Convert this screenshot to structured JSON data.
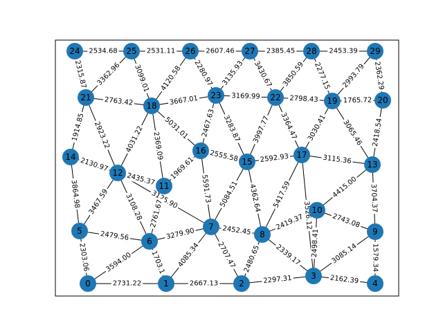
{
  "graph": {
    "nodes": [
      {
        "id": "0"
      },
      {
        "id": "1"
      },
      {
        "id": "2"
      },
      {
        "id": "3"
      },
      {
        "id": "4"
      },
      {
        "id": "5"
      },
      {
        "id": "6"
      },
      {
        "id": "7"
      },
      {
        "id": "8"
      },
      {
        "id": "9"
      },
      {
        "id": "10"
      },
      {
        "id": "11"
      },
      {
        "id": "12"
      },
      {
        "id": "13"
      },
      {
        "id": "14"
      },
      {
        "id": "15"
      },
      {
        "id": "16"
      },
      {
        "id": "17"
      },
      {
        "id": "18"
      },
      {
        "id": "19"
      },
      {
        "id": "20"
      },
      {
        "id": "21"
      },
      {
        "id": "22"
      },
      {
        "id": "23"
      },
      {
        "id": "24"
      },
      {
        "id": "25"
      },
      {
        "id": "26"
      },
      {
        "id": "27"
      },
      {
        "id": "28"
      },
      {
        "id": "29"
      }
    ],
    "edges": [
      {
        "source": "24",
        "target": "25",
        "label": "2534.68"
      },
      {
        "source": "25",
        "target": "26",
        "label": "2531.11"
      },
      {
        "source": "26",
        "target": "27",
        "label": "2607.46"
      },
      {
        "source": "27",
        "target": "28",
        "label": "2385.45"
      },
      {
        "source": "28",
        "target": "29",
        "label": "2453.39"
      },
      {
        "source": "24",
        "target": "21",
        "label": "2315.87"
      },
      {
        "source": "25",
        "target": "21",
        "label": "3362.96"
      },
      {
        "source": "25",
        "target": "18",
        "label": "3099.01"
      },
      {
        "source": "26",
        "target": "18",
        "label": "4120.58"
      },
      {
        "source": "26",
        "target": "23",
        "label": "2280.97"
      },
      {
        "source": "27",
        "target": "23",
        "label": "3135.93"
      },
      {
        "source": "27",
        "target": "22",
        "label": "3430.67"
      },
      {
        "source": "28",
        "target": "22",
        "label": "3850.59"
      },
      {
        "source": "28",
        "target": "19",
        "label": "2277.15"
      },
      {
        "source": "29",
        "target": "19",
        "label": "2993.79"
      },
      {
        "source": "29",
        "target": "20",
        "label": "2362.29"
      },
      {
        "source": "21",
        "target": "18",
        "label": "2763.42"
      },
      {
        "source": "18",
        "target": "23",
        "label": "3667.01"
      },
      {
        "source": "23",
        "target": "22",
        "label": "3169.99"
      },
      {
        "source": "22",
        "target": "19",
        "label": "2798.43"
      },
      {
        "source": "19",
        "target": "20",
        "label": "1765.72"
      },
      {
        "source": "21",
        "target": "14",
        "label": "1914.85"
      },
      {
        "source": "21",
        "target": "12",
        "label": "2923.22"
      },
      {
        "source": "18",
        "target": "12",
        "label": "4031.22"
      },
      {
        "source": "18",
        "target": "11",
        "label": "2369.09"
      },
      {
        "source": "18",
        "target": "16",
        "label": "5031.01"
      },
      {
        "source": "23",
        "target": "16",
        "label": "2467.63"
      },
      {
        "source": "23",
        "target": "15",
        "label": "3283.87"
      },
      {
        "source": "22",
        "target": "15",
        "label": "3997.77"
      },
      {
        "source": "22",
        "target": "17",
        "label": "3364.47"
      },
      {
        "source": "19",
        "target": "17",
        "label": "3030.41"
      },
      {
        "source": "19",
        "target": "13",
        "label": "3065.46"
      },
      {
        "source": "20",
        "target": "13",
        "label": "2418.54"
      },
      {
        "source": "14",
        "target": "12",
        "label": "2130.97"
      },
      {
        "source": "12",
        "target": "11",
        "label": "2435.37"
      },
      {
        "source": "11",
        "target": "16",
        "label": "1969.61"
      },
      {
        "source": "16",
        "target": "15",
        "label": "2555.58"
      },
      {
        "source": "15",
        "target": "17",
        "label": "2592.93"
      },
      {
        "source": "17",
        "target": "13",
        "label": "3115.36"
      },
      {
        "source": "14",
        "target": "5",
        "label": "3864.98"
      },
      {
        "source": "12",
        "target": "5",
        "label": "3467.59"
      },
      {
        "source": "12",
        "target": "6",
        "label": "3108.28"
      },
      {
        "source": "12",
        "target": "7",
        "label": "3125.90"
      },
      {
        "source": "11",
        "target": "6",
        "label": "2761.67"
      },
      {
        "source": "16",
        "target": "7",
        "label": "5591.73"
      },
      {
        "source": "15",
        "target": "7",
        "label": "5084.51"
      },
      {
        "source": "15",
        "target": "8",
        "label": "4362.64"
      },
      {
        "source": "17",
        "target": "8",
        "label": "5417.59"
      },
      {
        "source": "17",
        "target": "3",
        "label": "3526.12"
      },
      {
        "source": "13",
        "target": "10",
        "label": "4415.00"
      },
      {
        "source": "13",
        "target": "9",
        "label": "3704.37"
      },
      {
        "source": "5",
        "target": "6",
        "label": "2479.56"
      },
      {
        "source": "6",
        "target": "7",
        "label": "3279.90"
      },
      {
        "source": "7",
        "target": "8",
        "label": "2452.45"
      },
      {
        "source": "8",
        "target": "10",
        "label": "2419.37"
      },
      {
        "source": "10",
        "target": "9",
        "label": "2743.08"
      },
      {
        "source": "5",
        "target": "0",
        "label": "2303.06"
      },
      {
        "source": "6",
        "target": "0",
        "label": "3594.00"
      },
      {
        "source": "6",
        "target": "1",
        "label": "1703.1"
      },
      {
        "source": "7",
        "target": "1",
        "label": "4085.34"
      },
      {
        "source": "7",
        "target": "2",
        "label": "2707.47"
      },
      {
        "source": "8",
        "target": "2",
        "label": "2480.65"
      },
      {
        "source": "8",
        "target": "3",
        "label": "2339.17"
      },
      {
        "source": "10",
        "target": "3",
        "label": "2498.41"
      },
      {
        "source": "9",
        "target": "3",
        "label": "3085.14"
      },
      {
        "source": "9",
        "target": "4",
        "label": "1579.34"
      },
      {
        "source": "0",
        "target": "1",
        "label": "2731.22"
      },
      {
        "source": "1",
        "target": "2",
        "label": "2667.13"
      },
      {
        "source": "2",
        "target": "3",
        "label": "2297.31"
      },
      {
        "source": "3",
        "target": "4",
        "label": "2162.39"
      }
    ]
  }
}
